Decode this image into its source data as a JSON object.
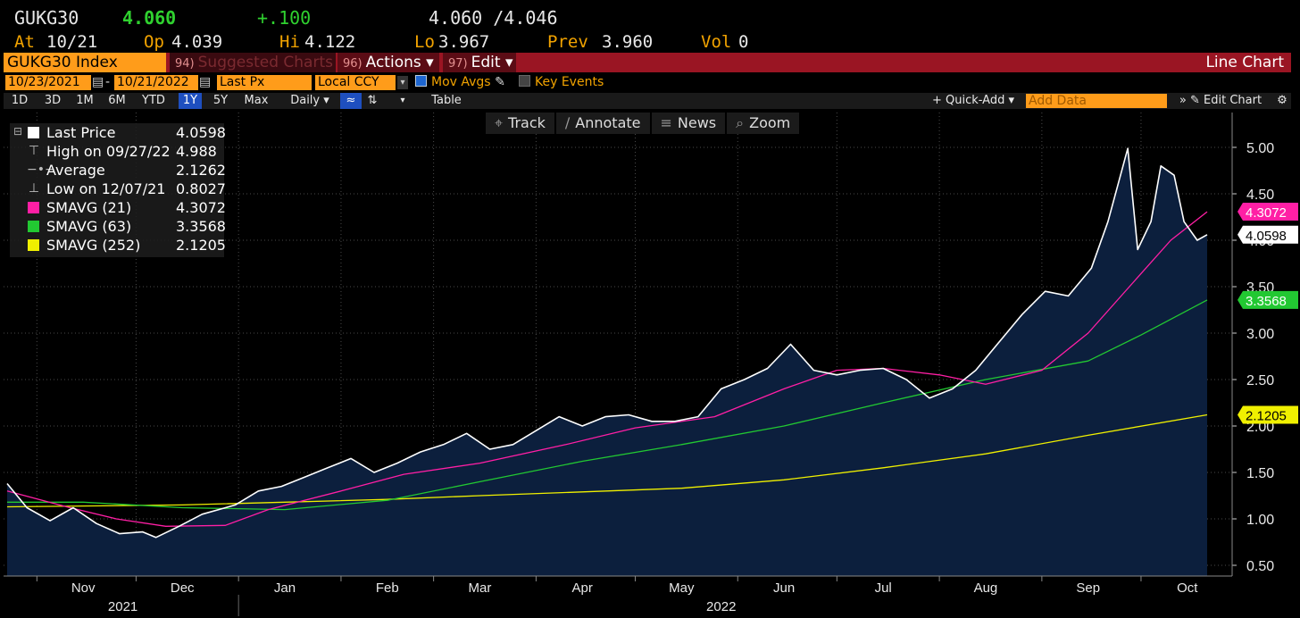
{
  "quote": {
    "ticker": "GUKG30",
    "last": "4.060",
    "change": "+.100",
    "bidask": "4.060 /4.046",
    "at_label": "At",
    "at": "10/21",
    "op_label": "Op",
    "op": "4.039",
    "hi_label": "Hi",
    "hi": "4.122",
    "lo_label": "Lo",
    "lo": "3.967",
    "prev_label": "Prev",
    "prev": "3.960",
    "vol_label": "Vol",
    "vol": "0"
  },
  "menu": {
    "security": "GUKG30 Index",
    "suggested_num": "94)",
    "suggested": "Suggested Charts",
    "actions_num": "96)",
    "actions": "Actions ▾",
    "edit_num": "97)",
    "edit": "Edit ▾",
    "chart_title": "Line Chart"
  },
  "params": {
    "start_date": "10/23/2021",
    "end_date": "10/21/2022",
    "dash": "-",
    "field": "Last Px",
    "currency": "Local CCY",
    "mov_avgs": "Mov Avgs",
    "key_events": "Key Events"
  },
  "periods": [
    "1D",
    "3D",
    "1M",
    "6M",
    "YTD",
    "1Y",
    "5Y",
    "Max"
  ],
  "selected_period": "1Y",
  "frequency": "Daily ▾",
  "table": "Table",
  "quick_add": "+ Quick-Add ▾",
  "add_data_placeholder": "Add Data",
  "edit_chart": "» ✎ Edit Chart",
  "tools": [
    {
      "icon": "⌖",
      "label": "Track"
    },
    {
      "icon": "∕",
      "label": "Annotate"
    },
    {
      "icon": "≡",
      "label": "News"
    },
    {
      "icon": "⌕",
      "label": "Zoom"
    }
  ],
  "legend": [
    {
      "label": "Last Price",
      "value": "4.0598",
      "color": "#ffffff",
      "kind": "box"
    },
    {
      "label": "High on 09/27/22",
      "value": "4.988",
      "kind": "high"
    },
    {
      "label": "Average",
      "value": "2.1262",
      "kind": "avg"
    },
    {
      "label": "Low on 12/07/21",
      "value": "0.8027",
      "kind": "low"
    },
    {
      "label": "SMAVG (21)",
      "value": "4.3072",
      "color": "#ff1fa5",
      "kind": "box"
    },
    {
      "label": "SMAVG (63)",
      "value": "3.3568",
      "color": "#22c832",
      "kind": "box"
    },
    {
      "label": "SMAVG (252)",
      "value": "2.1205",
      "color": "#f0f000",
      "kind": "box"
    }
  ],
  "chart_data": {
    "type": "line",
    "ylim": [
      0.5,
      5.1
    ],
    "y_ticks": [
      0.5,
      1.0,
      1.5,
      2.0,
      2.5,
      3.0,
      3.5,
      4.0,
      4.5,
      5.0
    ],
    "y_tick_labels": [
      "0.50",
      "1.00",
      "1.50",
      "2.00",
      "2.50",
      "3.00",
      "3.50",
      "4.00",
      "4.50",
      "5.00"
    ],
    "x_range": [
      "2021-10-23",
      "2022-10-21"
    ],
    "month_labels": [
      {
        "date": "2021-11-15",
        "label": "Nov"
      },
      {
        "date": "2021-12-15",
        "label": "Dec"
      },
      {
        "date": "2022-01-15",
        "label": "Jan"
      },
      {
        "date": "2022-02-15",
        "label": "Feb"
      },
      {
        "date": "2022-03-15",
        "label": "Mar"
      },
      {
        "date": "2022-04-15",
        "label": "Apr"
      },
      {
        "date": "2022-05-15",
        "label": "May"
      },
      {
        "date": "2022-06-15",
        "label": "Jun"
      },
      {
        "date": "2022-07-15",
        "label": "Jul"
      },
      {
        "date": "2022-08-15",
        "label": "Aug"
      },
      {
        "date": "2022-09-15",
        "label": "Sep"
      },
      {
        "date": "2022-10-15",
        "label": "Oct"
      }
    ],
    "month_boundaries": [
      "2021-11-01",
      "2021-12-01",
      "2022-01-01",
      "2022-02-01",
      "2022-03-01",
      "2022-04-01",
      "2022-05-01",
      "2022-06-01",
      "2022-07-01",
      "2022-08-01",
      "2022-09-01",
      "2022-10-01"
    ],
    "year_labels": [
      {
        "date": "2021-11-27",
        "label": "2021"
      },
      {
        "date": "2022-05-27",
        "label": "2022"
      }
    ],
    "year_boundary": "2022-01-01",
    "series": [
      {
        "name": "Last Price",
        "color": "#ffffff",
        "fill": true,
        "x": [
          "2021-10-23",
          "2021-10-29",
          "2021-11-05",
          "2021-11-12",
          "2021-11-19",
          "2021-11-26",
          "2021-12-03",
          "2021-12-07",
          "2021-12-14",
          "2021-12-21",
          "2021-12-31",
          "2022-01-07",
          "2022-01-14",
          "2022-01-21",
          "2022-01-28",
          "2022-02-04",
          "2022-02-11",
          "2022-02-18",
          "2022-02-25",
          "2022-03-04",
          "2022-03-11",
          "2022-03-18",
          "2022-03-25",
          "2022-04-01",
          "2022-04-08",
          "2022-04-15",
          "2022-04-22",
          "2022-04-29",
          "2022-05-06",
          "2022-05-13",
          "2022-05-20",
          "2022-05-27",
          "2022-06-03",
          "2022-06-10",
          "2022-06-17",
          "2022-06-24",
          "2022-07-01",
          "2022-07-08",
          "2022-07-15",
          "2022-07-22",
          "2022-07-29",
          "2022-08-05",
          "2022-08-12",
          "2022-08-19",
          "2022-08-26",
          "2022-09-02",
          "2022-09-09",
          "2022-09-16",
          "2022-09-21",
          "2022-09-27",
          "2022-09-30",
          "2022-10-04",
          "2022-10-07",
          "2022-10-11",
          "2022-10-14",
          "2022-10-18",
          "2022-10-21"
        ],
        "y": [
          1.38,
          1.12,
          0.98,
          1.12,
          0.95,
          0.84,
          0.86,
          0.8,
          0.92,
          1.05,
          1.15,
          1.3,
          1.35,
          1.45,
          1.55,
          1.65,
          1.5,
          1.6,
          1.72,
          1.8,
          1.92,
          1.75,
          1.8,
          1.95,
          2.1,
          2.0,
          2.1,
          2.12,
          2.05,
          2.05,
          2.1,
          2.4,
          2.5,
          2.62,
          2.88,
          2.6,
          2.55,
          2.6,
          2.62,
          2.5,
          2.3,
          2.4,
          2.6,
          2.9,
          3.2,
          3.45,
          3.4,
          3.7,
          4.2,
          4.988,
          3.9,
          4.2,
          4.8,
          4.7,
          4.2,
          4.0,
          4.0598
        ]
      },
      {
        "name": "SMAVG (21)",
        "color": "#ff1fa5",
        "x": [
          "2021-10-23",
          "2021-11-10",
          "2021-11-25",
          "2021-12-10",
          "2021-12-28",
          "2022-01-10",
          "2022-02-01",
          "2022-02-20",
          "2022-03-15",
          "2022-04-10",
          "2022-05-01",
          "2022-05-25",
          "2022-06-15",
          "2022-07-01",
          "2022-07-15",
          "2022-08-01",
          "2022-08-15",
          "2022-09-01",
          "2022-09-15",
          "2022-09-30",
          "2022-10-10",
          "2022-10-21"
        ],
        "y": [
          1.3,
          1.13,
          1.0,
          0.92,
          0.93,
          1.1,
          1.3,
          1.48,
          1.6,
          1.8,
          1.98,
          2.1,
          2.4,
          2.6,
          2.62,
          2.55,
          2.45,
          2.6,
          3.0,
          3.6,
          4.0,
          4.3072
        ]
      },
      {
        "name": "SMAVG (63)",
        "color": "#22c832",
        "x": [
          "2021-10-23",
          "2021-11-15",
          "2021-12-15",
          "2022-01-15",
          "2022-02-15",
          "2022-03-15",
          "2022-04-15",
          "2022-05-15",
          "2022-06-15",
          "2022-07-15",
          "2022-08-15",
          "2022-09-15",
          "2022-10-01",
          "2022-10-21"
        ],
        "y": [
          1.18,
          1.18,
          1.12,
          1.1,
          1.2,
          1.4,
          1.62,
          1.8,
          2.0,
          2.25,
          2.5,
          2.7,
          2.98,
          3.3568
        ]
      },
      {
        "name": "SMAVG (252)",
        "color": "#f0f000",
        "x": [
          "2021-10-23",
          "2021-12-15",
          "2022-01-15",
          "2022-02-15",
          "2022-03-15",
          "2022-04-15",
          "2022-05-15",
          "2022-06-15",
          "2022-07-15",
          "2022-08-15",
          "2022-09-15",
          "2022-10-21"
        ],
        "y": [
          1.13,
          1.15,
          1.18,
          1.21,
          1.25,
          1.29,
          1.33,
          1.42,
          1.55,
          1.7,
          1.9,
          2.1205
        ]
      }
    ],
    "value_tags": [
      {
        "value": 4.3072,
        "label": "4.3072",
        "bg": "#ff1fa5",
        "fg": "#ffffff"
      },
      {
        "value": 4.0598,
        "label": "4.0598",
        "bg": "#ffffff",
        "fg": "#000000"
      },
      {
        "value": 3.3568,
        "label": "3.3568",
        "bg": "#22c832",
        "fg": "#ffffff"
      },
      {
        "value": 2.1205,
        "label": "2.1205",
        "bg": "#f0f000",
        "fg": "#000000"
      }
    ]
  }
}
